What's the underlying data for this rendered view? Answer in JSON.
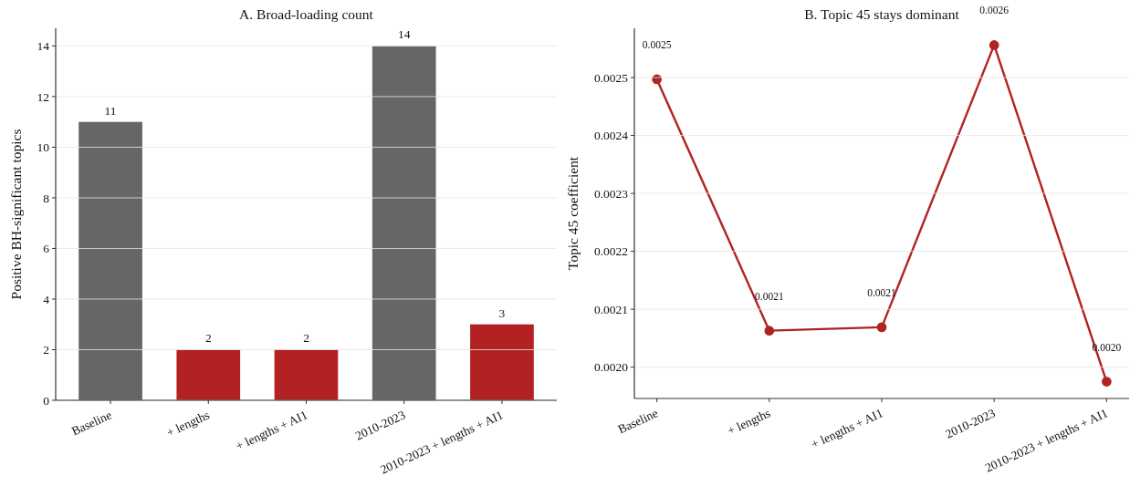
{
  "chart_data": [
    {
      "type": "bar",
      "title": "A. Broad-loading count",
      "ylabel": "Positive BH-significant topics",
      "categories": [
        "Baseline",
        "+ lengths",
        "+ lengths + AI1",
        "2010-2023",
        "2010-2023 + lengths + AI1"
      ],
      "values": [
        11,
        2,
        2,
        14,
        3
      ],
      "colors": [
        "#666666",
        "#b22222",
        "#b22222",
        "#666666",
        "#b22222"
      ],
      "ylim": [
        0,
        14.7
      ],
      "yticks": [
        0,
        2,
        4,
        6,
        8,
        10,
        12,
        14
      ],
      "grid": "y",
      "data_labels": true
    },
    {
      "type": "line",
      "title": "B. Topic 45 stays dominant",
      "ylabel": "Topic 45 coefficient",
      "categories": [
        "Baseline",
        "+ lengths",
        "+ lengths + AI1",
        "2010-2023",
        "2010-2023 + lengths + AI1"
      ],
      "values": [
        0.002497,
        0.002063,
        0.002069,
        0.002556,
        0.001975
      ],
      "color": "#b22222",
      "value_labels": [
        "0.0025",
        "0.0021",
        "0.0021",
        "0.0026",
        "0.0020"
      ],
      "ylim": [
        0.001946,
        0.002585
      ],
      "yticks": [
        {
          "value": 0.002,
          "label": "0.0020"
        },
        0.0021,
        0.0022,
        0.0023,
        0.0024,
        0.0025
      ],
      "grid": "y",
      "marker": "circle",
      "line_style": "solid"
    }
  ]
}
